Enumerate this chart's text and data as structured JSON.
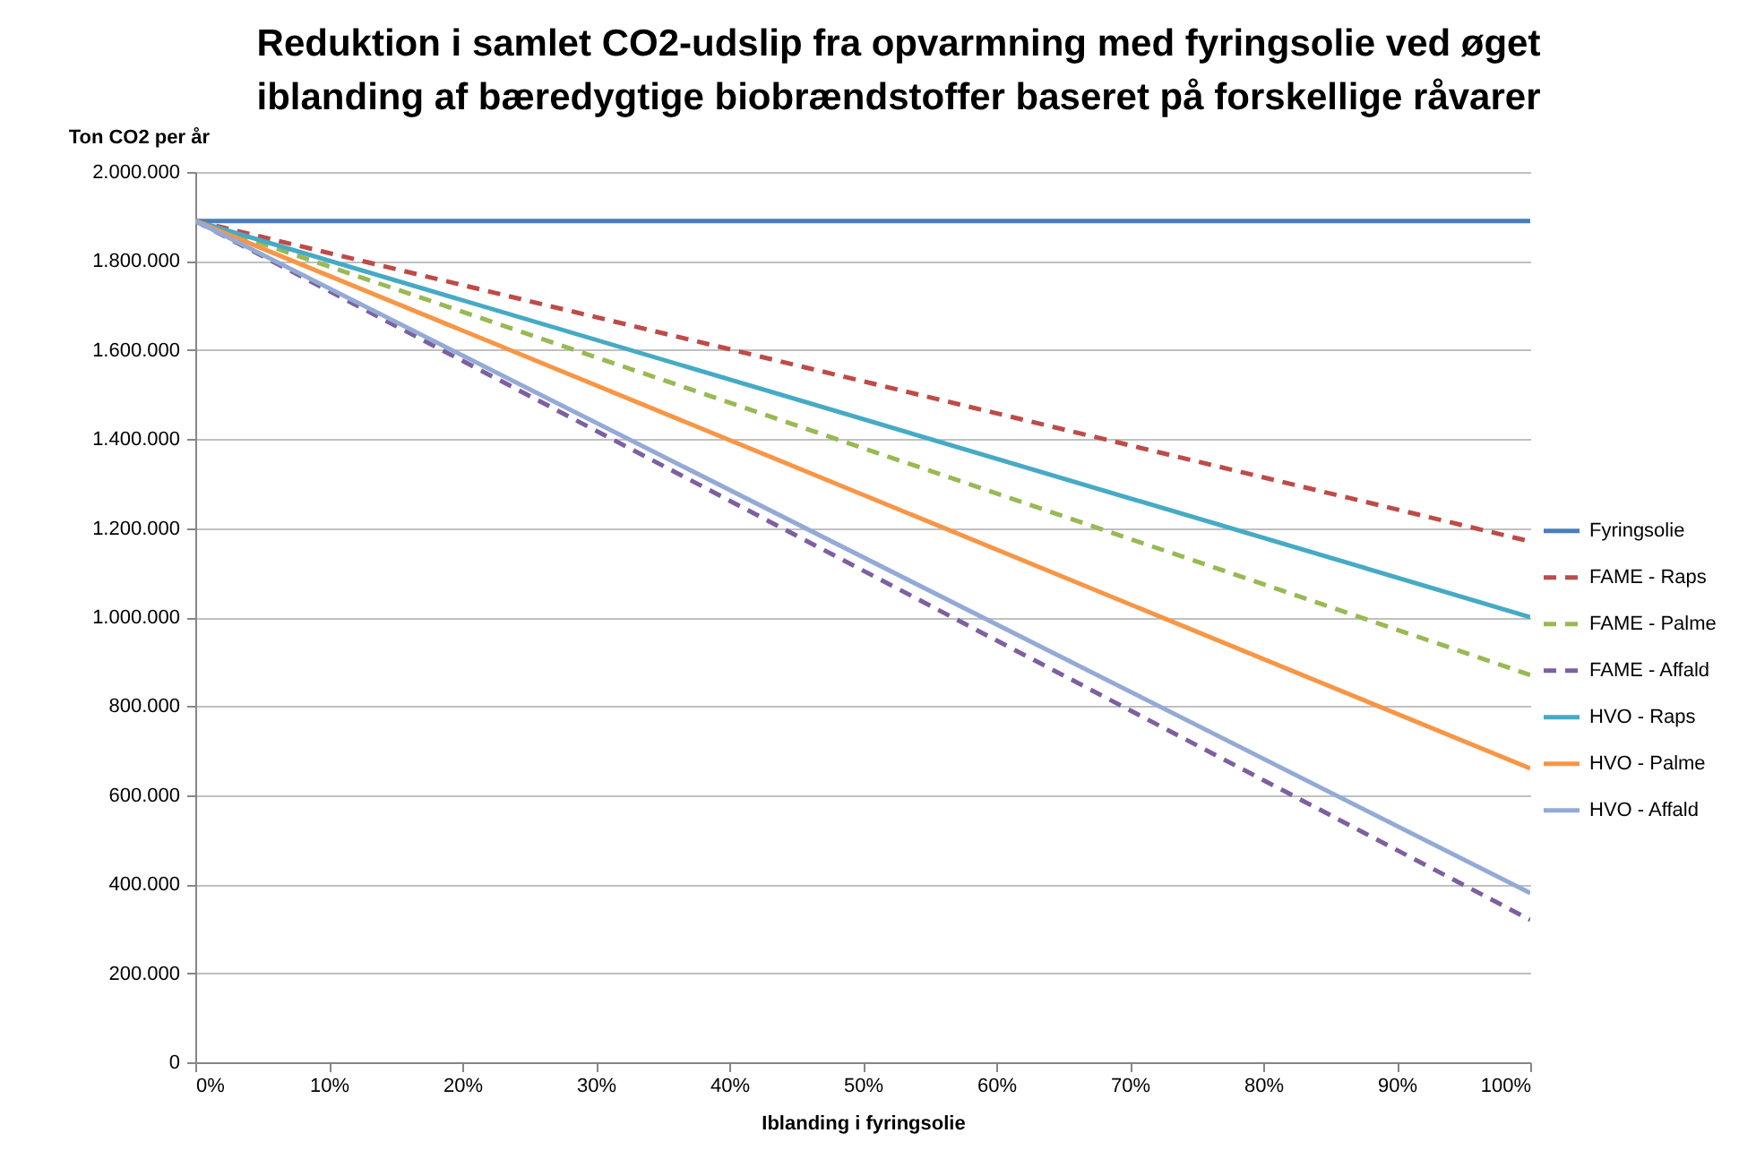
{
  "chart_data": {
    "type": "line",
    "title": "Reduktion i samlet CO2-udslip fra opvarmning med fyringsolie ved øget iblanding af bæredygtige biobrændstoffer baseret på forskellige råvarer",
    "ylabel": "Ton CO2 per år",
    "xlabel": "Iblanding i fyringsolie",
    "x": [
      0,
      100
    ],
    "xlim": [
      0,
      100
    ],
    "xticks": [
      {
        "value": 0,
        "label": "0%"
      },
      {
        "value": 10,
        "label": "10%"
      },
      {
        "value": 20,
        "label": "20%"
      },
      {
        "value": 30,
        "label": "30%"
      },
      {
        "value": 40,
        "label": "40%"
      },
      {
        "value": 50,
        "label": "50%"
      },
      {
        "value": 60,
        "label": "60%"
      },
      {
        "value": 70,
        "label": "70%"
      },
      {
        "value": 80,
        "label": "80%"
      },
      {
        "value": 90,
        "label": "90%"
      },
      {
        "value": 100,
        "label": "100%"
      }
    ],
    "ylim": [
      0,
      2000000
    ],
    "yticks": [
      {
        "value": 0,
        "label": "0"
      },
      {
        "value": 200000,
        "label": "200.000"
      },
      {
        "value": 400000,
        "label": "400.000"
      },
      {
        "value": 600000,
        "label": "600.000"
      },
      {
        "value": 800000,
        "label": "800.000"
      },
      {
        "value": 1000000,
        "label": "1.000.000"
      },
      {
        "value": 1200000,
        "label": "1.200.000"
      },
      {
        "value": 1400000,
        "label": "1.400.000"
      },
      {
        "value": 1600000,
        "label": "1.600.000"
      },
      {
        "value": 1800000,
        "label": "1.800.000"
      },
      {
        "value": 2000000,
        "label": "2.000.000"
      }
    ],
    "grid": "y",
    "legend": "right",
    "series": [
      {
        "name": "Fyringsolie",
        "color": "#4a7ebb",
        "line_style": "solid",
        "values": [
          1890000,
          1890000
        ]
      },
      {
        "name": "FAME - Raps",
        "color": "#be4b48",
        "line_style": "dashed",
        "values": [
          1890000,
          1170000
        ]
      },
      {
        "name": "FAME - Palme",
        "color": "#98b954",
        "line_style": "dashed",
        "values": [
          1890000,
          870000
        ]
      },
      {
        "name": "FAME - Affald",
        "color": "#7d60a0",
        "line_style": "dashed",
        "values": [
          1890000,
          320000
        ]
      },
      {
        "name": "HVO - Raps",
        "color": "#46aac5",
        "line_style": "solid",
        "values": [
          1890000,
          1000000
        ]
      },
      {
        "name": "HVO - Palme",
        "color": "#f79646",
        "line_style": "solid",
        "values": [
          1890000,
          660000
        ]
      },
      {
        "name": "HVO - Affald",
        "color": "#94aad6",
        "line_style": "solid",
        "values": [
          1890000,
          380000
        ]
      }
    ]
  }
}
